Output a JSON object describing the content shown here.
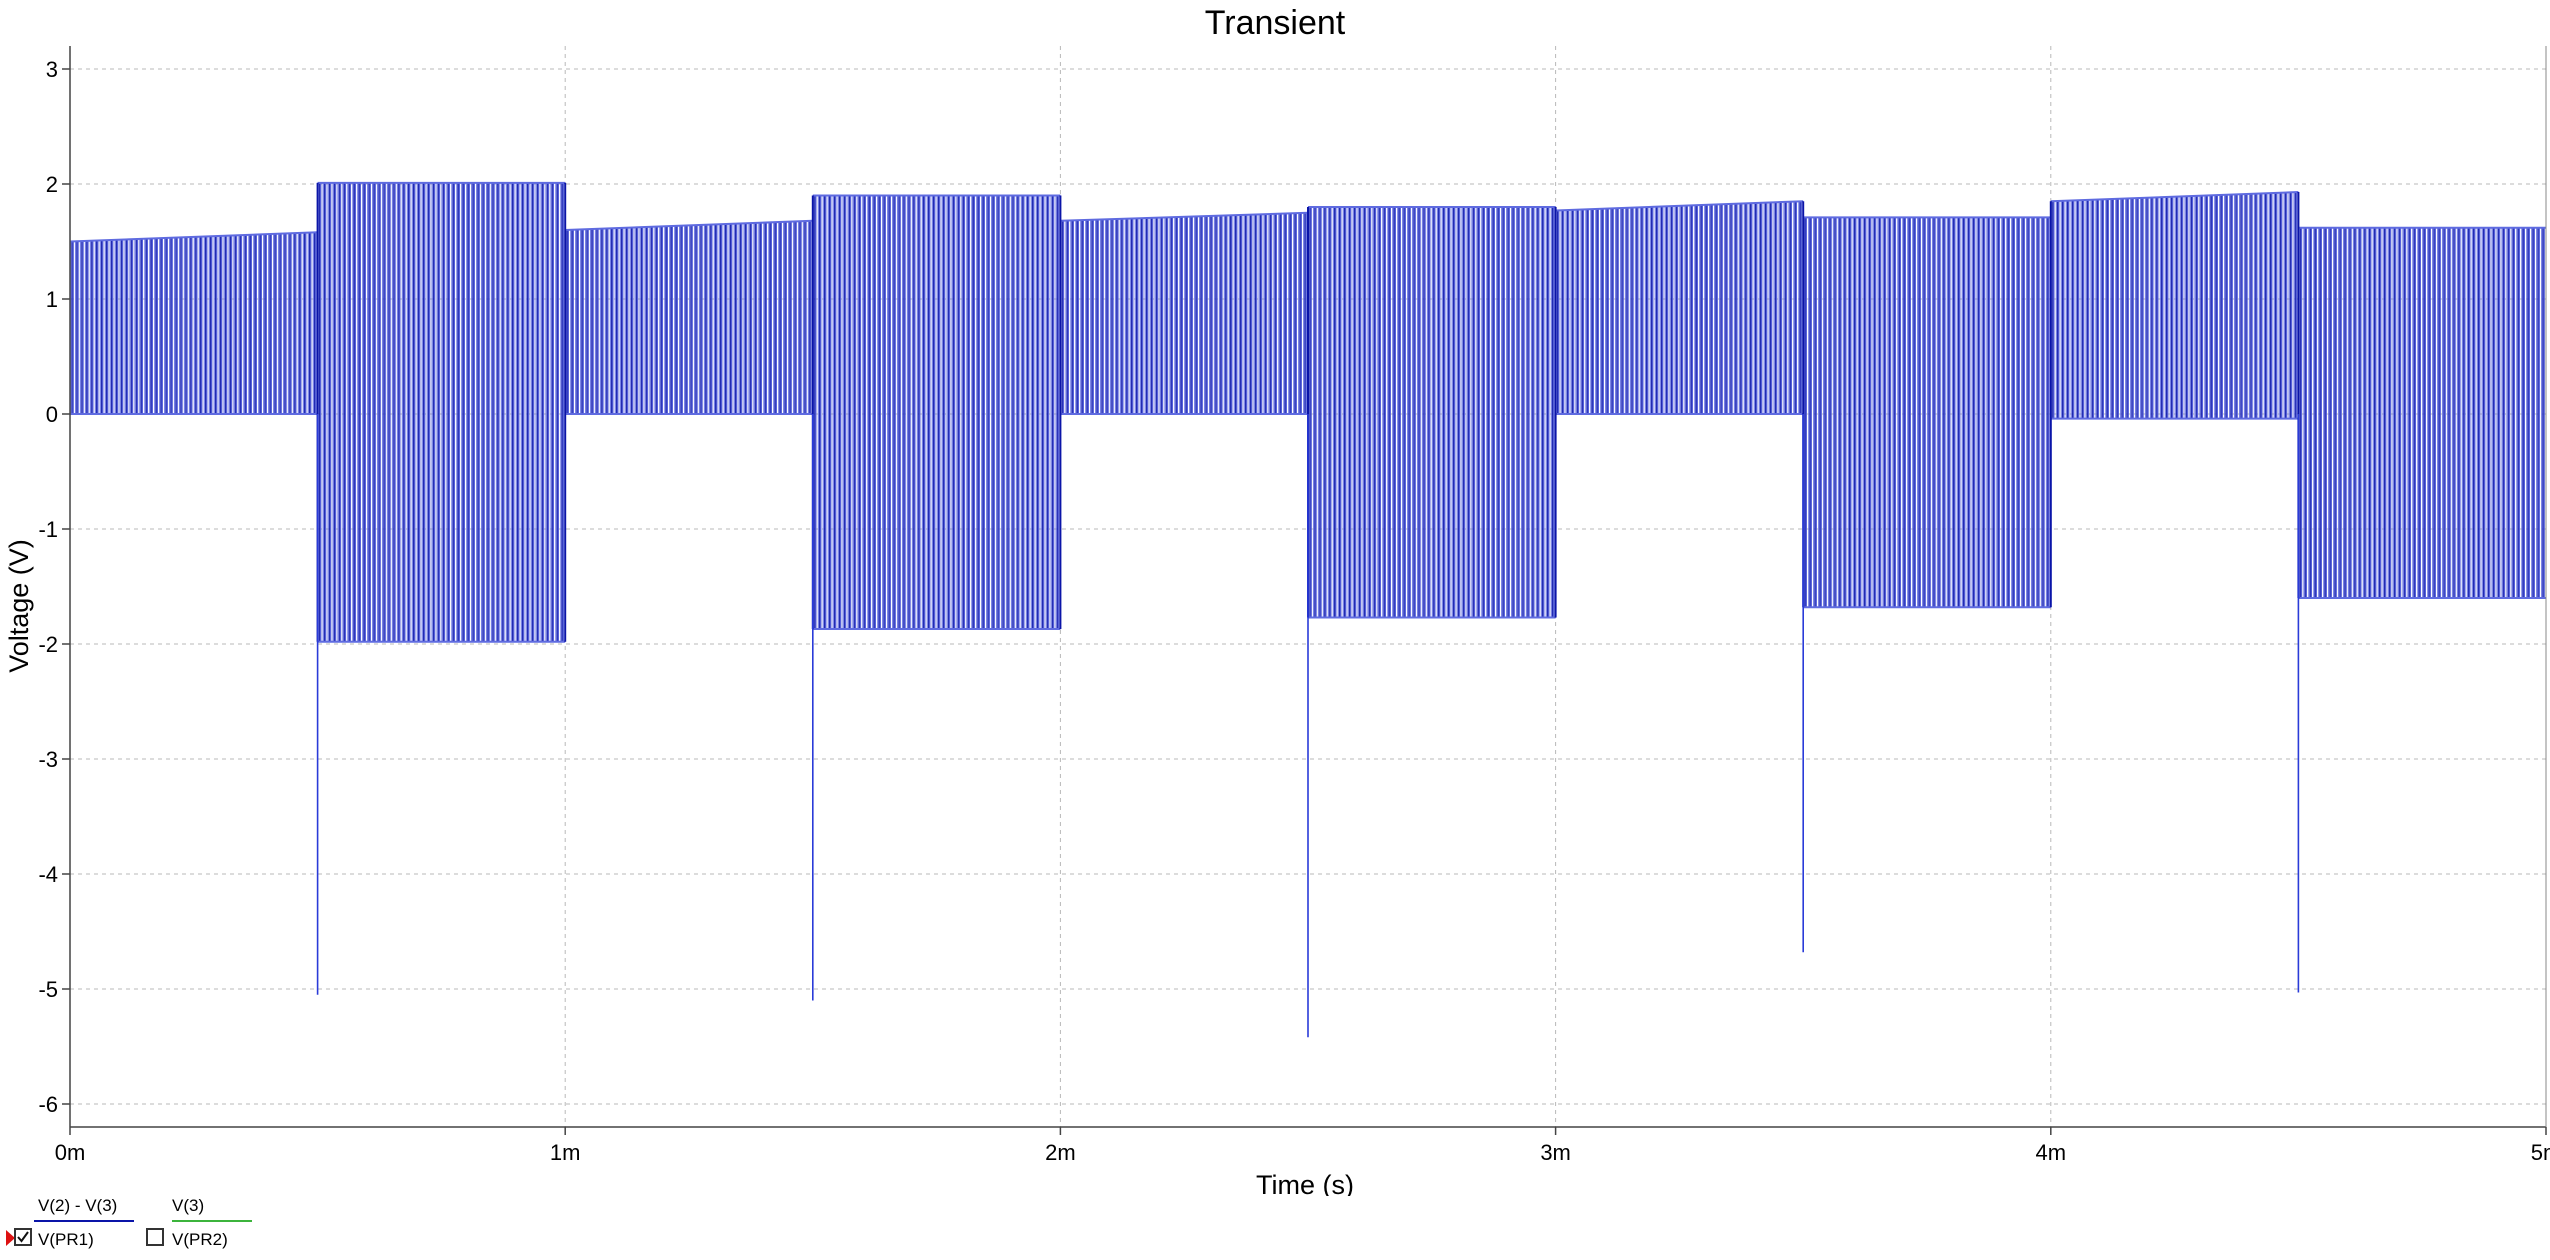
{
  "chart_data": {
    "type": "line",
    "title": "Transient",
    "xlabel": "Time (s)",
    "ylabel": "Voltage (V)",
    "xlim": [
      0,
      5
    ],
    "ylim": [
      -6.2,
      3.2
    ],
    "x_ticks": [
      0,
      1,
      2,
      3,
      4,
      5
    ],
    "x_tick_labels": [
      "0m",
      "1m",
      "2m",
      "3m",
      "4m",
      "5m"
    ],
    "y_ticks": [
      3,
      2,
      1,
      0,
      -1,
      -2,
      -3,
      -4,
      -5,
      -6
    ],
    "y_tick_labels": [
      "3",
      "2",
      "1",
      "0",
      "-1",
      "-2",
      "-3",
      "-4",
      "-5",
      "-6"
    ],
    "grid": true,
    "colors": {
      "signal": "#0a14a8",
      "envelope": "#5f6be0",
      "legend_v3": "#3cb43c"
    },
    "segments": [
      {
        "start": 0.0,
        "end": 0.5,
        "low": 0.0,
        "high_start": 1.5,
        "high_end": 1.58
      },
      {
        "start": 0.5,
        "end": 1.0,
        "low": -1.98,
        "high_start": 2.01,
        "high_end": 2.01
      },
      {
        "start": 1.0,
        "end": 1.5,
        "low": 0.0,
        "high_start": 1.6,
        "high_end": 1.68
      },
      {
        "start": 1.5,
        "end": 2.0,
        "low": -1.87,
        "high_start": 1.9,
        "high_end": 1.9
      },
      {
        "start": 2.0,
        "end": 2.5,
        "low": 0.0,
        "high_start": 1.68,
        "high_end": 1.75
      },
      {
        "start": 2.5,
        "end": 3.0,
        "low": -1.77,
        "high_start": 1.8,
        "high_end": 1.8
      },
      {
        "start": 3.0,
        "end": 3.5,
        "low": 0.0,
        "high_start": 1.77,
        "high_end": 1.85
      },
      {
        "start": 3.5,
        "end": 4.0,
        "low": -1.68,
        "high_start": 1.71,
        "high_end": 1.71
      },
      {
        "start": 4.0,
        "end": 4.5,
        "low": -0.04,
        "high_start": 1.85,
        "high_end": 1.93
      },
      {
        "start": 4.5,
        "end": 5.0,
        "low": -1.6,
        "high_start": 1.62,
        "high_end": 1.62
      }
    ],
    "spikes": [
      {
        "x": 0.5,
        "y": -5.05
      },
      {
        "x": 1.5,
        "y": -5.1
      },
      {
        "x": 2.5,
        "y": -5.42
      },
      {
        "x": 3.5,
        "y": -4.68
      },
      {
        "x": 4.5,
        "y": -5.03
      }
    ]
  },
  "legend": {
    "items": [
      {
        "top": "V(2) - V(3)",
        "bottom": "V(PR1)",
        "checked": true
      },
      {
        "top": "V(3)",
        "bottom": "V(PR2)",
        "checked": false
      }
    ]
  }
}
